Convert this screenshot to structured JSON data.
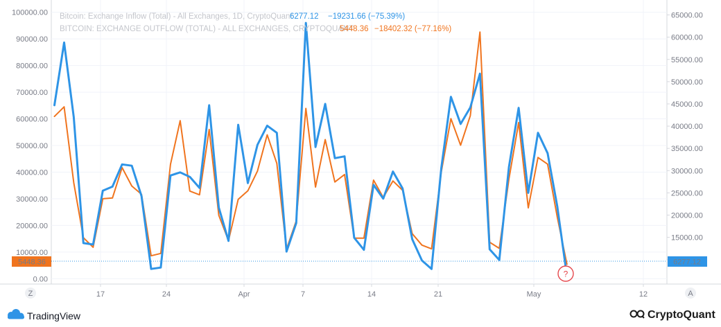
{
  "chart_data": {
    "type": "line",
    "x_labels": [
      "17",
      "24",
      "Apr",
      "7",
      "14",
      "21",
      "May",
      "12"
    ],
    "left_axis": {
      "ticks": [
        "0.00",
        "10000.00",
        "20000.00",
        "30000.00",
        "40000.00",
        "50000.00",
        "60000.00",
        "70000.00",
        "80000.00",
        "90000.00",
        "100000.00"
      ],
      "range": [
        -2000,
        102000
      ]
    },
    "right_axis": {
      "ticks": [
        "10000.00",
        "15000.00",
        "20000.00",
        "25000.00",
        "30000.00",
        "35000.00",
        "40000.00",
        "45000.00",
        "50000.00",
        "55000.00",
        "60000.00",
        "65000.00"
      ],
      "range": [
        4500,
        66800
      ]
    },
    "series": [
      {
        "name": "Bitcoin: Exchange Inflow (Total) - All Exchanges, 1D, CryptoQuant",
        "last": "6277.12",
        "change": "−19231.66 (−75.39%)",
        "color": "#2e94e6",
        "axis": "right",
        "values": [
          44700,
          58800,
          42000,
          13700,
          13400,
          25500,
          26400,
          31400,
          31100,
          24300,
          7900,
          8200,
          28900,
          29600,
          28600,
          26100,
          44700,
          21700,
          14200,
          40300,
          27200,
          35800,
          40100,
          38500,
          11800,
          18200,
          63200,
          35300,
          45000,
          32800,
          33200,
          14900,
          12200,
          26800,
          23700,
          29800,
          26000,
          14600,
          9800,
          7900,
          30500,
          46600,
          40500,
          44200,
          51800,
          12300,
          9900,
          30800,
          44100,
          25000,
          38500,
          33900,
          21900,
          6277
        ]
      },
      {
        "name": "BITCOIN: EXCHANGE OUTFLOW (TOTAL) - ALL EXCHANGES, CRYPTOQUANT",
        "last": "5448.36",
        "change": "−18402.32 (−77.16%)",
        "color": "#f0741e",
        "axis": "left",
        "values": [
          60900,
          64500,
          36000,
          15400,
          11800,
          30000,
          30300,
          41700,
          34800,
          31700,
          8600,
          9500,
          42900,
          59300,
          32900,
          31500,
          56000,
          23800,
          14300,
          29800,
          33000,
          40400,
          54000,
          43300,
          11100,
          21700,
          63900,
          34400,
          52200,
          36300,
          39100,
          15200,
          15200,
          37000,
          30500,
          36700,
          33200,
          16900,
          12600,
          11200,
          40000,
          60100,
          50100,
          61200,
          92600,
          13700,
          11400,
          37400,
          58600,
          26600,
          45500,
          43000,
          23000,
          5448
        ]
      }
    ],
    "annotation": "?",
    "grid": true
  },
  "ui": {
    "left_corner": "Z",
    "right_corner": "A",
    "tradingview_label": "TradingView",
    "cryptoquant_label": "CryptoQuant"
  }
}
